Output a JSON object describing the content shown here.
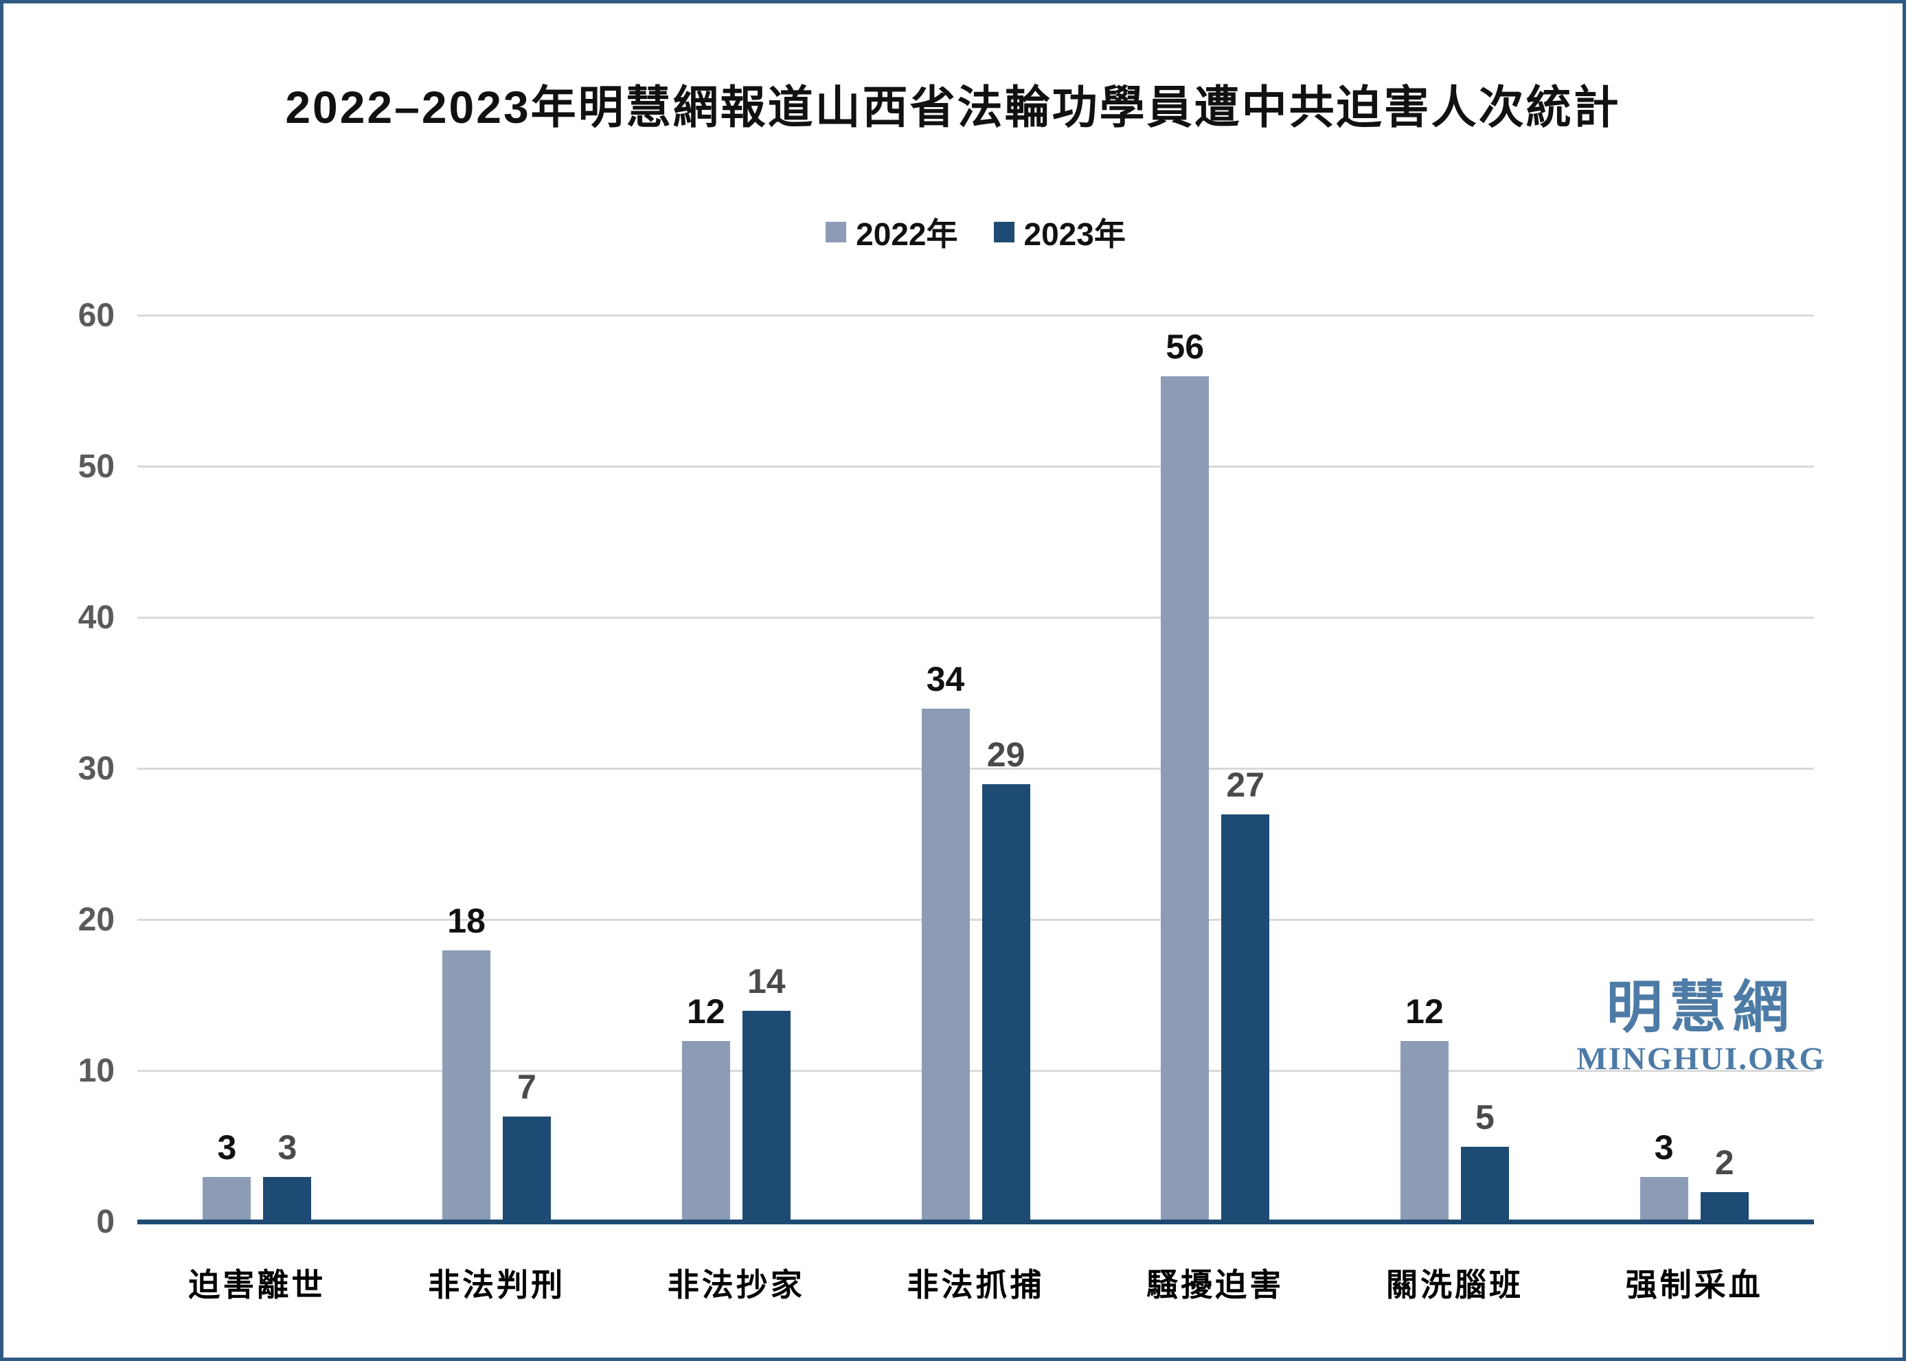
{
  "watermark": {
    "cjk": "明慧網",
    "latin": "MINGHUI.ORG"
  },
  "chart_data": {
    "type": "bar",
    "title": "2022–2023年明慧網報道山西省法輪功學員遭中共迫害人次統計",
    "categories": [
      "迫害離世",
      "非法判刑",
      "非法抄家",
      "非法抓捕",
      "騷擾迫害",
      "關洗腦班",
      "强制采血"
    ],
    "series": [
      {
        "name": "2022年",
        "color": "#8C9CB6",
        "label_color": "#111111",
        "values": [
          3,
          18,
          12,
          34,
          56,
          12,
          3
        ]
      },
      {
        "name": "2023年",
        "color": "#1E4B73",
        "label_color": "#4A4A4A",
        "values": [
          3,
          7,
          14,
          29,
          27,
          5,
          2
        ]
      }
    ],
    "xlabel": "",
    "ylabel": "",
    "ylim": [
      0,
      60
    ],
    "yticks": [
      0,
      10,
      20,
      30,
      40,
      50,
      60
    ],
    "grid": true,
    "legend_position": "top",
    "axis_color": "#1E4B73",
    "gridline_color": "#D9D9D9"
  }
}
